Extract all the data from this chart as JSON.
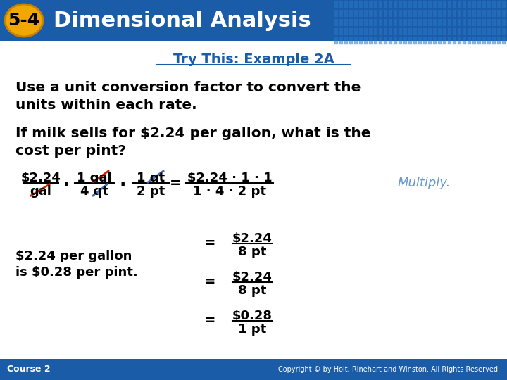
{
  "header_bg_color": "#1a5ca8",
  "header_text": "Dimensional Analysis",
  "header_badge_text": "5-4",
  "header_badge_bg": "#f0a800",
  "header_badge_text_color": "#000000",
  "header_text_color": "#ffffff",
  "footer_bg_color": "#1a5ca8",
  "footer_left": "Course 2",
  "footer_right": "Copyright © by Holt, Rinehart and Winston. All Rights Reserved.",
  "footer_text_color": "#ffffff",
  "bg_color": "#ffffff",
  "subtitle_text": "Try This: Example 2A",
  "subtitle_color": "#1a5ca8",
  "body_color": "#000000",
  "line1": "Use a unit conversion factor to convert the",
  "line2": "units within each rate.",
  "line3": "If milk sells for $2.24 per gallon, what is the",
  "line4": "cost per pint?",
  "multiply_color": "#6699cc",
  "red_strike": "#cc2200",
  "blue_strike": "#4466bb"
}
